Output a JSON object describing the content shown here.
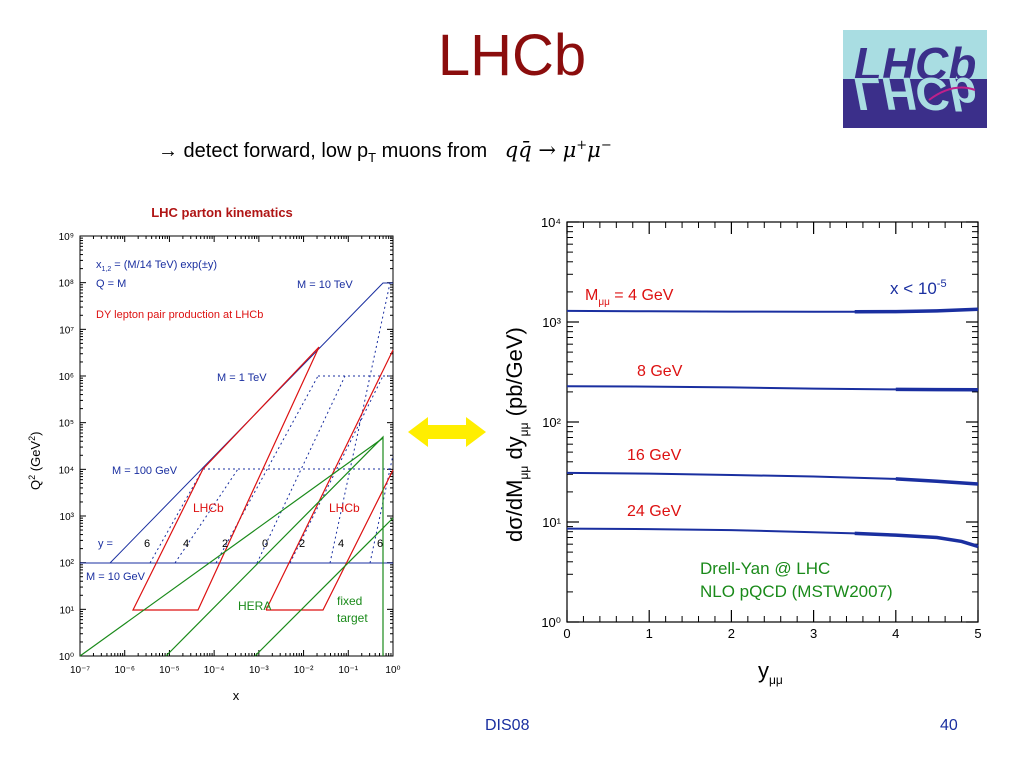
{
  "slide": {
    "title": "LHCb",
    "subtitle_text": "→ detect forward, low p",
    "subtitle_sub": "T",
    "subtitle_text2": " muons from",
    "formula_main": "qq̄ → μ",
    "formula_sup1": "+",
    "formula_mu": "μ",
    "formula_sup2": "−",
    "footer_left": "DIS08",
    "footer_right": "40",
    "logo_text": "LHCb"
  },
  "colors": {
    "title": "#8b0d0d",
    "blue": "#1a2fa0",
    "red": "#dd1111",
    "green": "#1a8a1a",
    "arrow": "#ffee00"
  },
  "chart_data": [
    {
      "type": "line",
      "title": "LHC parton kinematics",
      "xlabel": "x",
      "ylabel": "Q² (GeV²)",
      "xscale": "log",
      "yscale": "log",
      "xlim_exp": [
        -7,
        0
      ],
      "ylim_exp": [
        0,
        9
      ],
      "x_tick_labels": [
        "10⁻⁷",
        "10⁻⁶",
        "10⁻⁵",
        "10⁻⁴",
        "10⁻³",
        "10⁻²",
        "10⁻¹",
        "10⁰"
      ],
      "y_tick_labels": [
        "10⁰",
        "10¹",
        "10²",
        "10³",
        "10⁴",
        "10⁵",
        "10⁶",
        "10⁷",
        "10⁸",
        "10⁹"
      ],
      "annotations": {
        "formula": "x",
        "formula_sub": "1,2",
        "formula_rest": " = (M/14 TeV) exp(±y)",
        "qm": "Q = M",
        "dy": "DY lepton pair production at LHCb",
        "m10tev": "M = 10 TeV",
        "m1tev": "M = 1 TeV",
        "m100gev": "M = 100 GeV",
        "m10gev": "M = 10 GeV",
        "y_eq": "y =",
        "y_values": [
          "6",
          "4",
          "2",
          "0",
          "2",
          "4",
          "6"
        ],
        "lhcb_left": "LHCb",
        "lhcb_right": "LHCb",
        "hera": "HERA",
        "fixed_target_1": "fixed",
        "fixed_target_2": "target"
      }
    },
    {
      "type": "line",
      "xlabel": "y",
      "xlabel_sub": "μμ",
      "ylabel": "dσ/dM",
      "ylabel_sub1": "μμ",
      "ylabel_mid": " dy",
      "ylabel_sub2": "μμ",
      "ylabel_unit": "   (pb/GeV)",
      "xlim": [
        0,
        5
      ],
      "yscale": "log",
      "ylim_exp": [
        0,
        4
      ],
      "x_ticks": [
        "0",
        "1",
        "2",
        "3",
        "4",
        "5"
      ],
      "y_tick_labels": [
        "10⁰",
        "10¹",
        "10²",
        "10³",
        "10⁴"
      ],
      "series": [
        {
          "name": "M_μμ = 4 GeV",
          "x": [
            0,
            1,
            2,
            3,
            3.5,
            4,
            4.5,
            5
          ],
          "y": [
            1290,
            1280,
            1270,
            1265,
            1265,
            1270,
            1290,
            1340
          ]
        },
        {
          "name": "8 GeV",
          "x": [
            0,
            1,
            2,
            3,
            4,
            4.5,
            5
          ],
          "y": [
            228,
            226,
            222,
            216,
            212,
            211,
            210
          ]
        },
        {
          "name": "16 GeV",
          "x": [
            0,
            1,
            2,
            3,
            4,
            4.5,
            5
          ],
          "y": [
            31,
            30.5,
            29.5,
            28.5,
            27,
            25.5,
            24
          ]
        },
        {
          "name": "24 GeV",
          "x": [
            0,
            1,
            2,
            3,
            3.5,
            4,
            4.5,
            4.8,
            5
          ],
          "y": [
            8.6,
            8.5,
            8.3,
            7.9,
            7.7,
            7.4,
            7.0,
            6.4,
            5.7
          ]
        }
      ],
      "label_main_prefix": "M",
      "label_main_sub": "μμ",
      "label_main_rest": " = 4 GeV",
      "corner_label": "x < 10",
      "corner_label_sup": "-5",
      "note1": "Drell-Yan @ LHC",
      "note2": "NLO pQCD (MSTW2007)"
    }
  ]
}
